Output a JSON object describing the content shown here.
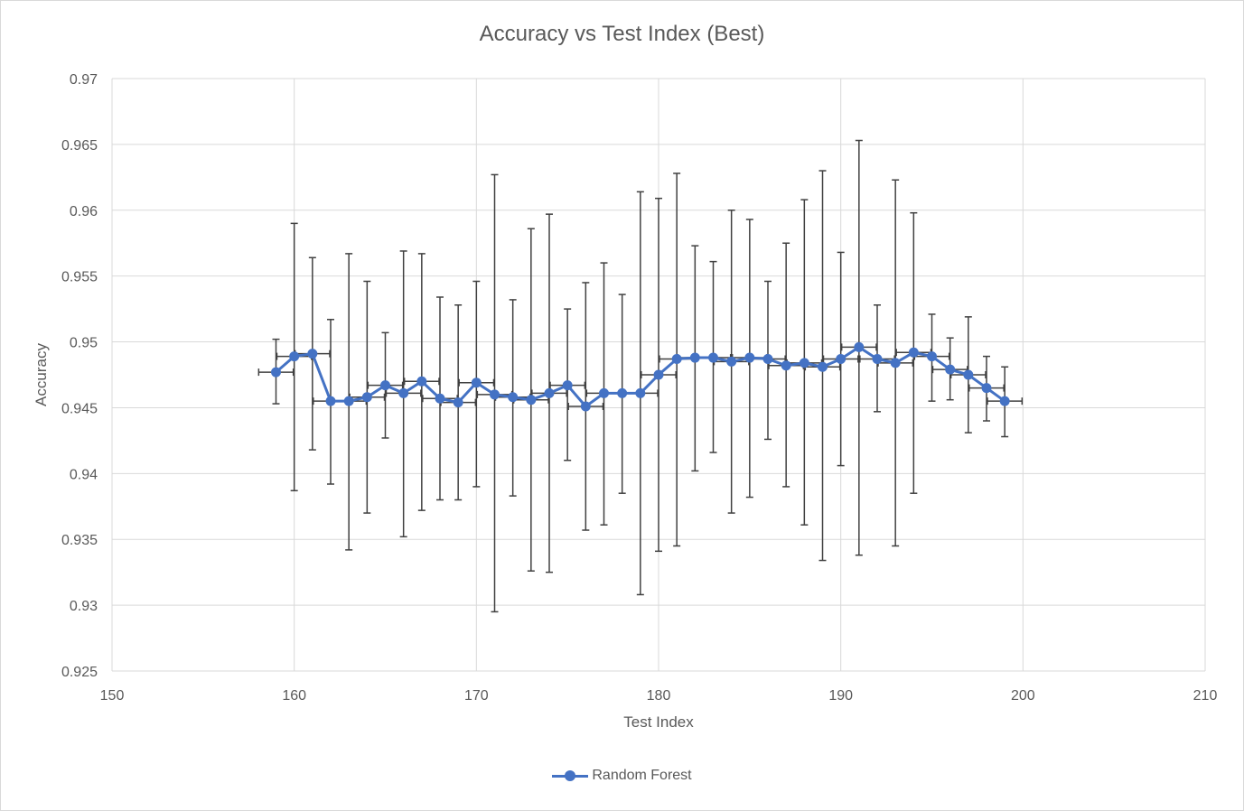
{
  "chart_data": {
    "type": "line",
    "title": "Accuracy vs Test Index (Best)",
    "xlabel": "Test Index",
    "ylabel": "Accuracy",
    "xlim": [
      150,
      210
    ],
    "ylim": [
      0.925,
      0.97
    ],
    "x_ticks": [
      150,
      160,
      170,
      180,
      190,
      200,
      210
    ],
    "x_tick_labels": [
      "150",
      "160",
      "170",
      "180",
      "190",
      "200",
      "210"
    ],
    "y_ticks": [
      0.925,
      0.93,
      0.935,
      0.94,
      0.945,
      0.95,
      0.955,
      0.96,
      0.965,
      0.97
    ],
    "y_tick_labels": [
      "0.925",
      "0.93",
      "0.935",
      "0.94",
      "0.945",
      "0.95",
      "0.955",
      "0.96",
      "0.965",
      "0.97"
    ],
    "grid": true,
    "legend_position": "bottom",
    "series": [
      {
        "name": "Random Forest",
        "color": "#4472c4",
        "x": [
          159,
          160,
          161,
          162,
          163,
          164,
          165,
          166,
          167,
          168,
          169,
          170,
          171,
          172,
          173,
          174,
          175,
          176,
          177,
          178,
          179,
          180,
          181,
          182,
          183,
          184,
          185,
          186,
          187,
          188,
          189,
          190,
          191,
          192,
          193,
          194,
          195,
          196,
          197,
          198,
          199
        ],
        "y": [
          0.9477,
          0.9489,
          0.9491,
          0.9455,
          0.9455,
          0.9458,
          0.9467,
          0.9461,
          0.947,
          0.9457,
          0.9454,
          0.9469,
          0.946,
          0.9458,
          0.9456,
          0.9461,
          0.9467,
          0.9451,
          0.9461,
          0.9461,
          0.9461,
          0.9475,
          0.9487,
          0.9488,
          0.9488,
          0.9485,
          0.9488,
          0.9487,
          0.9482,
          0.9484,
          0.9481,
          0.9487,
          0.9496,
          0.9487,
          0.9484,
          0.9492,
          0.9489,
          0.9479,
          0.9475,
          0.9465,
          0.9455
        ],
        "y_err_low": [
          0.9453,
          0.9387,
          0.9418,
          0.9392,
          0.9342,
          0.937,
          0.9427,
          0.9352,
          0.9372,
          0.938,
          0.938,
          0.939,
          0.9295,
          0.9383,
          0.9326,
          0.9325,
          0.941,
          0.9357,
          0.9361,
          0.9385,
          0.9308,
          0.9341,
          0.9345,
          0.9402,
          0.9416,
          0.937,
          0.9382,
          0.9426,
          0.939,
          0.9361,
          0.9334,
          0.9406,
          0.9338,
          0.9447,
          0.9345,
          0.9385,
          0.9455,
          0.9456,
          0.9431,
          0.944,
          0.9428
        ],
        "y_err_high": [
          0.9502,
          0.959,
          0.9564,
          0.9517,
          0.9567,
          0.9546,
          0.9507,
          0.9569,
          0.9567,
          0.9534,
          0.9528,
          0.9546,
          0.9627,
          0.9532,
          0.9586,
          0.9597,
          0.9525,
          0.9545,
          0.956,
          0.9536,
          0.9614,
          0.9609,
          0.9628,
          0.9573,
          0.9561,
          0.96,
          0.9593,
          0.9546,
          0.9575,
          0.9608,
          0.963,
          0.9568,
          0.9653,
          0.9528,
          0.9623,
          0.9598,
          0.9521,
          0.9503,
          0.9519,
          0.9489,
          0.9481
        ]
      }
    ]
  }
}
